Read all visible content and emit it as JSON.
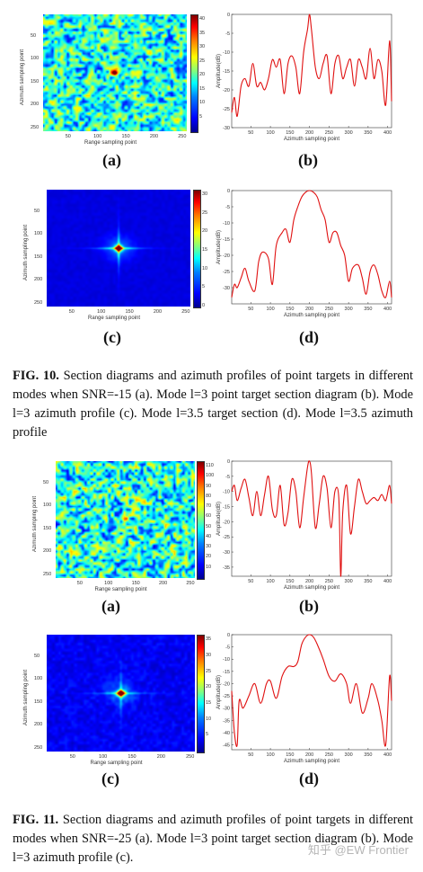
{
  "labels": {
    "range_axis": "Range sampling point",
    "azimuth_axis": "Azimuth sampling point",
    "amplitude_axis": "Amplitude(dB)"
  },
  "subfigure_labels": [
    "(a)",
    "(b)",
    "(c)",
    "(d)"
  ],
  "fig10": {
    "caption_bold": "FIG. 10.",
    "caption_text": " Section diagrams and azimuth profiles of point targets in different modes when SNR=-15 (a). Mode l=3 point target section diagram (b). Mode l=3 azimuth profile (c). Mode l=3.5 target section (d). Mode l=3.5 azimuth profile"
  },
  "fig11": {
    "caption_bold": "FIG. 11.",
    "caption_text": " Section diagrams and azimuth profiles of point targets in different modes when SNR=-25 (a). Mode l=3 point target section diagram (b). Mode l=3 azimuth profile (c)."
  },
  "watermark": "知乎 @EW Frontier",
  "chart_data": [
    {
      "id": "fig10a",
      "type": "heatmap",
      "xlabel": "Range sampling point",
      "ylabel": "Azimuth sampling point",
      "xticks": [
        50,
        100,
        150,
        200,
        250
      ],
      "yticks": [
        50,
        100,
        150,
        200,
        250
      ],
      "xlim": [
        1,
        256
      ],
      "ylim": [
        1,
        256
      ],
      "colorbar_ticks": [
        5,
        10,
        15,
        20,
        25,
        30,
        35,
        40
      ],
      "peak": {
        "x": 128,
        "y": 128
      },
      "style": "noisy"
    },
    {
      "id": "fig10b",
      "type": "line",
      "xlabel": "Azimuth sampling point",
      "ylabel": "Amplitude(dB)",
      "xlim": [
        1,
        410
      ],
      "ylim": [
        -30,
        0
      ],
      "xticks": [
        50,
        100,
        150,
        200,
        250,
        300,
        350,
        400
      ],
      "yticks": [
        0,
        -5,
        -10,
        -15,
        -20,
        -25,
        -30
      ],
      "series": [
        {
          "color": "#e01010",
          "x": [
            1,
            8,
            15,
            25,
            35,
            45,
            55,
            65,
            75,
            85,
            95,
            105,
            115,
            125,
            135,
            145,
            155,
            165,
            175,
            185,
            195,
            200,
            205,
            215,
            225,
            235,
            245,
            255,
            265,
            275,
            285,
            295,
            305,
            315,
            325,
            335,
            345,
            355,
            365,
            375,
            385,
            395,
            405,
            410
          ],
          "y": [
            -26,
            -22,
            -27,
            -19,
            -17,
            -19,
            -13,
            -19,
            -18,
            -20,
            -17,
            -12,
            -14,
            -12,
            -21,
            -13,
            -11,
            -14,
            -21,
            -10,
            -4,
            0,
            -4,
            -14,
            -17,
            -13,
            -11,
            -21,
            -13,
            -11,
            -17,
            -14,
            -12,
            -19,
            -12,
            -14,
            -17,
            -9,
            -17,
            -12,
            -15,
            -24,
            -7,
            -23
          ]
        }
      ]
    },
    {
      "id": "fig10c",
      "type": "heatmap",
      "xlabel": "Range sampling point",
      "ylabel": "Azimuth sampling point",
      "xticks": [
        50,
        100,
        150,
        200,
        250
      ],
      "yticks": [
        50,
        100,
        150,
        200,
        250
      ],
      "xlim": [
        1,
        256
      ],
      "ylim": [
        1,
        256
      ],
      "colorbar_ticks": [
        0,
        5,
        10,
        15,
        20,
        25,
        30
      ],
      "peak": {
        "x": 128,
        "y": 128
      },
      "style": "clean"
    },
    {
      "id": "fig10d",
      "type": "line",
      "xlabel": "Azimuth sampling point",
      "ylabel": "Amplitude(dB)",
      "xlim": [
        1,
        410
      ],
      "ylim": [
        -35,
        0
      ],
      "xticks": [
        50,
        100,
        150,
        200,
        250,
        300,
        350,
        400
      ],
      "yticks": [
        0,
        -5,
        -10,
        -15,
        -20,
        -25,
        -30
      ],
      "series": [
        {
          "color": "#e01010",
          "x": [
            1,
            8,
            15,
            25,
            35,
            45,
            60,
            70,
            80,
            95,
            105,
            115,
            130,
            140,
            150,
            160,
            170,
            180,
            190,
            200,
            210,
            220,
            230,
            240,
            250,
            260,
            270,
            280,
            290,
            300,
            310,
            325,
            335,
            345,
            355,
            365,
            375,
            385,
            395,
            405,
            410
          ],
          "y": [
            -33,
            -29,
            -30,
            -27,
            -24,
            -28,
            -31,
            -22,
            -19,
            -21,
            -29,
            -17,
            -13,
            -12,
            -16,
            -9,
            -5,
            -2,
            -0.5,
            0,
            -0.5,
            -2,
            -6,
            -9,
            -16,
            -13,
            -13,
            -17,
            -20,
            -28,
            -24,
            -23,
            -27,
            -32,
            -25,
            -23,
            -26,
            -31,
            -33,
            -28,
            -33
          ]
        }
      ]
    },
    {
      "id": "fig11a",
      "type": "heatmap",
      "xlabel": "Range sampling point",
      "ylabel": "Azimuth sampling point",
      "xticks": [
        50,
        100,
        150,
        200,
        250
      ],
      "yticks": [
        50,
        100,
        150,
        200,
        250
      ],
      "xlim": [
        1,
        256
      ],
      "ylim": [
        1,
        256
      ],
      "colorbar_ticks": [
        10,
        20,
        30,
        40,
        50,
        60,
        70,
        80,
        90,
        100,
        110
      ],
      "peak": {
        "x": 128,
        "y": 128
      },
      "style": "very-noisy"
    },
    {
      "id": "fig11b",
      "type": "line",
      "xlabel": "Azimuth sampling point",
      "ylabel": "Amplitude(dB)",
      "xlim": [
        1,
        410
      ],
      "ylim": [
        -38,
        0
      ],
      "xticks": [
        50,
        100,
        150,
        200,
        250,
        300,
        350,
        400
      ],
      "yticks": [
        0,
        -5,
        -10,
        -15,
        -20,
        -25,
        -30,
        -35
      ],
      "series": [
        {
          "color": "#e01010",
          "x": [
            1,
            8,
            15,
            25,
            35,
            45,
            55,
            65,
            75,
            85,
            95,
            105,
            115,
            125,
            135,
            145,
            155,
            165,
            175,
            185,
            195,
            200,
            205,
            215,
            225,
            235,
            245,
            255,
            265,
            275,
            280,
            285,
            295,
            305,
            315,
            325,
            335,
            345,
            355,
            365,
            375,
            385,
            395,
            405,
            410
          ],
          "y": [
            -10,
            -8,
            -13,
            -9,
            -6,
            -12,
            -18,
            -10,
            -18,
            -11,
            -5,
            -16,
            -18,
            -8,
            -21,
            -17,
            -6,
            -10,
            -22,
            -12,
            -2,
            0,
            -4,
            -22,
            -14,
            -5,
            -9,
            -22,
            -10,
            -12,
            -38,
            -17,
            -8,
            -24,
            -15,
            -6,
            -10,
            -14,
            -13,
            -12,
            -13,
            -11,
            -13,
            -8,
            -14
          ]
        }
      ]
    },
    {
      "id": "fig11c",
      "type": "heatmap",
      "xlabel": "Range sampling point",
      "ylabel": "Azimuth sampling point",
      "xticks": [
        50,
        100,
        150,
        200,
        250
      ],
      "yticks": [
        50,
        100,
        150,
        200,
        250
      ],
      "xlim": [
        1,
        256
      ],
      "ylim": [
        1,
        256
      ],
      "colorbar_ticks": [
        5,
        10,
        15,
        20,
        25,
        30,
        35
      ],
      "peak": {
        "x": 128,
        "y": 128
      },
      "style": "clean-noisy"
    },
    {
      "id": "fig11d",
      "type": "line",
      "xlabel": "Azimuth sampling point",
      "ylabel": "Amplitude(dB)",
      "xlim": [
        1,
        410
      ],
      "ylim": [
        -47,
        0
      ],
      "xticks": [
        50,
        100,
        150,
        200,
        250,
        300,
        350,
        400
      ],
      "yticks": [
        0,
        -5,
        -10,
        -15,
        -20,
        -25,
        -30,
        -35,
        -40,
        -45
      ],
      "series": [
        {
          "color": "#e01010",
          "x": [
            1,
            8,
            15,
            20,
            30,
            45,
            60,
            75,
            90,
            100,
            115,
            130,
            145,
            160,
            170,
            180,
            190,
            200,
            210,
            220,
            235,
            250,
            265,
            280,
            295,
            305,
            320,
            335,
            350,
            360,
            375,
            385,
            395,
            405,
            410
          ],
          "y": [
            -23,
            -40,
            -45,
            -27,
            -30,
            -25,
            -20,
            -28,
            -20,
            -19,
            -26,
            -17,
            -13,
            -13,
            -11,
            -4,
            -1,
            0,
            -1,
            -4,
            -10,
            -17,
            -19,
            -16,
            -20,
            -28,
            -20,
            -32,
            -26,
            -20,
            -27,
            -35,
            -45,
            -17,
            -27
          ]
        }
      ]
    }
  ]
}
